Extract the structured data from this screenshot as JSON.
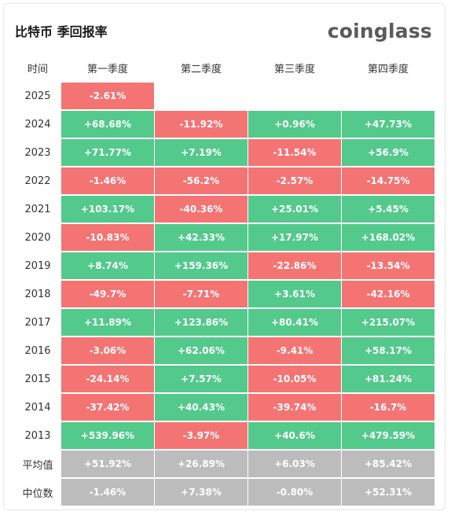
{
  "header": {
    "title": "比特币 季回报率",
    "logo": "coinglass"
  },
  "colors": {
    "positive": "#53c98c",
    "negative": "#f47474",
    "summary": "#bcbcbc"
  },
  "chart_data": {
    "type": "table",
    "row_header_label": "时间",
    "columns": [
      "第一季度",
      "第二季度",
      "第三季度",
      "第四季度"
    ],
    "rows": [
      {
        "label": "2025",
        "values": [
          "-2.61%",
          null,
          null,
          null
        ]
      },
      {
        "label": "2024",
        "values": [
          "+68.68%",
          "-11.92%",
          "+0.96%",
          "+47.73%"
        ]
      },
      {
        "label": "2023",
        "values": [
          "+71.77%",
          "+7.19%",
          "-11.54%",
          "+56.9%"
        ]
      },
      {
        "label": "2022",
        "values": [
          "-1.46%",
          "-56.2%",
          "-2.57%",
          "-14.75%"
        ]
      },
      {
        "label": "2021",
        "values": [
          "+103.17%",
          "-40.36%",
          "+25.01%",
          "+5.45%"
        ]
      },
      {
        "label": "2020",
        "values": [
          "-10.83%",
          "+42.33%",
          "+17.97%",
          "+168.02%"
        ]
      },
      {
        "label": "2019",
        "values": [
          "+8.74%",
          "+159.36%",
          "-22.86%",
          "-13.54%"
        ]
      },
      {
        "label": "2018",
        "values": [
          "-49.7%",
          "-7.71%",
          "+3.61%",
          "-42.16%"
        ]
      },
      {
        "label": "2017",
        "values": [
          "+11.89%",
          "+123.86%",
          "+80.41%",
          "+215.07%"
        ]
      },
      {
        "label": "2016",
        "values": [
          "-3.06%",
          "+62.06%",
          "-9.41%",
          "+58.17%"
        ]
      },
      {
        "label": "2015",
        "values": [
          "-24.14%",
          "+7.57%",
          "-10.05%",
          "+81.24%"
        ]
      },
      {
        "label": "2014",
        "values": [
          "-37.42%",
          "+40.43%",
          "-39.74%",
          "-16.7%"
        ]
      },
      {
        "label": "2013",
        "values": [
          "+539.96%",
          "-3.97%",
          "+40.6%",
          "+479.59%"
        ]
      }
    ],
    "summary_rows": [
      {
        "label": "平均值",
        "values": [
          "+51.92%",
          "+26.89%",
          "+6.03%",
          "+85.42%"
        ]
      },
      {
        "label": "中位数",
        "values": [
          "-1.46%",
          "+7.38%",
          "-0.80%",
          "+52.31%"
        ]
      }
    ]
  }
}
